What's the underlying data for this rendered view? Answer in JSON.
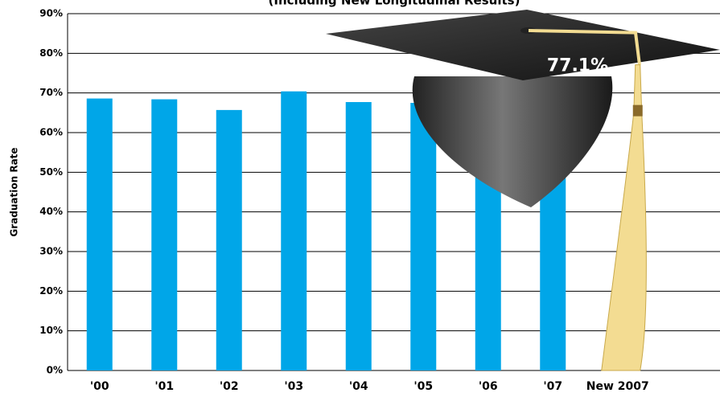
{
  "chart_data": {
    "type": "bar",
    "title": "(Including New Longitudinal Results)",
    "y_label": "Graduation Rate",
    "categories": [
      "'00",
      "'01",
      "'02",
      "'03",
      "'04",
      "'05",
      "'06",
      "'07",
      "New 2007"
    ],
    "values": [
      68.6,
      68.4,
      65.7,
      70.4,
      67.7,
      67.5,
      64.9,
      64.5,
      77.1
    ],
    "value_labels": [
      null,
      null,
      null,
      null,
      null,
      null,
      null,
      null,
      "77.1%"
    ],
    "colors": [
      "#00a6e8",
      "#00a6e8",
      "#00a6e8",
      "#00a6e8",
      "#00a6e8",
      "#00a6e8",
      "#00a6e8",
      "#00a6e8",
      "#f3dc92"
    ],
    "ylim": [
      0,
      90
    ],
    "yticks": [
      {
        "value": 0,
        "label": "0%"
      },
      {
        "value": 10,
        "label": "10%"
      },
      {
        "value": 20,
        "label": "20%"
      },
      {
        "value": 30,
        "label": "30%"
      },
      {
        "value": 40,
        "label": "40%"
      },
      {
        "value": 50,
        "label": "50%"
      },
      {
        "value": 60,
        "label": "60%"
      },
      {
        "value": 70,
        "label": "70%"
      },
      {
        "value": 80,
        "label": "80%"
      },
      {
        "value": 90,
        "label": "90%"
      }
    ],
    "grid": true
  }
}
